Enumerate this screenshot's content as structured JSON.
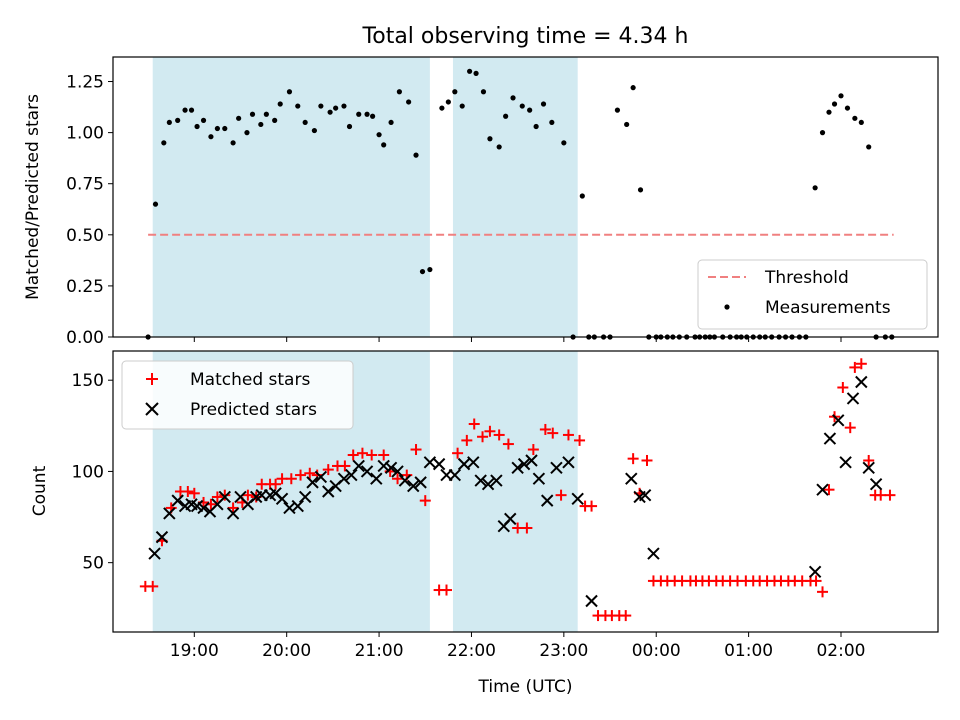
{
  "figure": {
    "title": "Total observing time = 4.34 h",
    "xlabel": "Time (UTC)",
    "x_tick_labels": [
      "19:00",
      "20:00",
      "21:00",
      "22:00",
      "23:00",
      "00:00",
      "01:00",
      "02:00"
    ],
    "x_unit": "decimal hours UTC; values above 24 are after midnight",
    "colors": {
      "shade": "#add8e6",
      "matched": "#ff0000",
      "predicted": "#000000",
      "threshold": "#f08080",
      "measurement": "#000000"
    }
  },
  "chart_data": [
    {
      "type": "scatter",
      "ylabel": "Matched/Predicted stars",
      "xlim": [
        18.12,
        27.05
      ],
      "ylim": [
        0,
        1.37
      ],
      "y_ticks": [
        0.0,
        0.25,
        0.5,
        0.75,
        1.0,
        1.25
      ],
      "y_tick_labels": [
        "0.00",
        "0.25",
        "0.50",
        "0.75",
        "1.00",
        "1.25"
      ],
      "legend_position": "lower-right",
      "shaded_spans": [
        [
          18.55,
          21.55
        ],
        [
          21.8,
          23.15
        ]
      ],
      "series": [
        {
          "name": "Threshold",
          "kind": "dashed-line",
          "x": [
            18.5,
            26.57
          ],
          "y": [
            0.5,
            0.5
          ]
        },
        {
          "name": "Measurements",
          "kind": "dot",
          "x": [
            18.5,
            18.58,
            18.67,
            18.73,
            18.82,
            18.9,
            18.97,
            19.03,
            19.1,
            19.18,
            19.25,
            19.33,
            19.42,
            19.48,
            19.57,
            19.63,
            19.72,
            19.78,
            19.87,
            19.93,
            20.03,
            20.12,
            20.2,
            20.3,
            20.37,
            20.47,
            20.53,
            20.62,
            20.68,
            20.78,
            20.87,
            20.93,
            21.0,
            21.05,
            21.13,
            21.22,
            21.32,
            21.4,
            21.47,
            21.55,
            21.68,
            21.75,
            21.82,
            21.9,
            21.98,
            22.05,
            22.13,
            22.2,
            22.3,
            22.37,
            22.45,
            22.55,
            22.63,
            22.7,
            22.78,
            22.87,
            23.0,
            23.1,
            23.2,
            23.27,
            23.33,
            23.43,
            23.5,
            23.58,
            23.68,
            23.75,
            23.83,
            23.92,
            24.0,
            24.05,
            24.12,
            24.18,
            24.25,
            24.33,
            24.42,
            24.47,
            24.53,
            24.58,
            24.63,
            24.72,
            24.8,
            24.87,
            24.92,
            24.98,
            25.05,
            25.12,
            25.18,
            25.25,
            25.33,
            25.4,
            25.47,
            25.55,
            25.62,
            25.72,
            25.8,
            25.87,
            25.93,
            26.0,
            26.07,
            26.15,
            26.22,
            26.3,
            26.38,
            26.48,
            26.55
          ],
          "y": [
            0.0,
            0.65,
            0.95,
            1.05,
            1.06,
            1.11,
            1.11,
            1.03,
            1.06,
            0.98,
            1.02,
            1.02,
            0.95,
            1.07,
            1.0,
            1.09,
            1.04,
            1.09,
            1.06,
            1.14,
            1.2,
            1.13,
            1.05,
            1.01,
            1.13,
            1.1,
            1.12,
            1.13,
            1.03,
            1.09,
            1.09,
            1.08,
            0.99,
            0.94,
            1.05,
            1.2,
            1.15,
            0.89,
            0.32,
            0.33,
            1.12,
            1.15,
            1.2,
            1.13,
            1.3,
            1.29,
            1.2,
            0.97,
            0.93,
            1.08,
            1.17,
            1.13,
            1.11,
            1.03,
            1.14,
            1.05,
            0.95,
            0.0,
            0.69,
            0.0,
            0.0,
            0.0,
            0.0,
            1.11,
            1.04,
            1.22,
            0.72,
            0.0,
            0.0,
            0.0,
            0.0,
            0.0,
            0.0,
            0.0,
            0.0,
            0.0,
            0.0,
            0.0,
            0.0,
            0.0,
            0.0,
            0.0,
            0.0,
            0.0,
            0.0,
            0.0,
            0.0,
            0.0,
            0.0,
            0.0,
            0.0,
            0.0,
            0.0,
            0.73,
            1.0,
            1.1,
            1.14,
            1.18,
            1.12,
            1.07,
            1.05,
            0.93,
            0.0,
            0.0,
            0.0
          ]
        }
      ]
    },
    {
      "type": "scatter",
      "ylabel": "Count",
      "xlim": [
        18.12,
        27.05
      ],
      "ylim": [
        12,
        166
      ],
      "y_ticks": [
        50,
        100,
        150
      ],
      "y_tick_labels": [
        "50",
        "100",
        "150"
      ],
      "legend_position": "upper-left",
      "shaded_spans": [
        [
          18.55,
          21.55
        ],
        [
          21.8,
          23.15
        ]
      ],
      "series": [
        {
          "name": "Matched stars",
          "kind": "plus",
          "x": [
            18.47,
            18.55,
            18.65,
            18.75,
            18.85,
            18.93,
            19.0,
            19.1,
            19.18,
            19.25,
            19.33,
            19.42,
            19.52,
            19.58,
            19.67,
            19.73,
            19.82,
            19.88,
            19.95,
            20.05,
            20.15,
            20.25,
            20.33,
            20.45,
            20.55,
            20.63,
            20.72,
            20.82,
            20.92,
            21.05,
            21.12,
            21.2,
            21.3,
            21.4,
            21.5,
            21.65,
            21.73,
            21.85,
            21.95,
            22.03,
            22.12,
            22.2,
            22.3,
            22.4,
            22.5,
            22.6,
            22.67,
            22.8,
            22.88,
            22.97,
            23.05,
            23.17,
            23.23,
            23.3,
            23.37,
            23.45,
            23.52,
            23.6,
            23.67,
            23.75,
            23.82,
            23.9,
            23.97,
            24.05,
            24.12,
            24.2,
            24.28,
            24.37,
            24.43,
            24.5,
            24.57,
            24.65,
            24.72,
            24.8,
            24.88,
            24.97,
            25.05,
            25.12,
            25.2,
            25.28,
            25.35,
            25.43,
            25.5,
            25.58,
            25.67,
            25.73,
            25.8,
            25.87,
            25.93,
            26.02,
            26.1,
            26.15,
            26.22,
            26.3,
            26.37,
            26.43,
            26.53
          ],
          "y": [
            37,
            37,
            62,
            80,
            89,
            89,
            88,
            83,
            82,
            86,
            87,
            80,
            83,
            87,
            86,
            93,
            93,
            93,
            96,
            96,
            98,
            99,
            98,
            101,
            103,
            103,
            109,
            110,
            109,
            109,
            100,
            96,
            98,
            112,
            84,
            35,
            35,
            110,
            117,
            126,
            119,
            122,
            120,
            115,
            69,
            69,
            112,
            123,
            121,
            87,
            120,
            117,
            81,
            81,
            21,
            21,
            21,
            21,
            21,
            107,
            88,
            106,
            40,
            40,
            40,
            40,
            40,
            40,
            40,
            40,
            40,
            40,
            40,
            40,
            40,
            40,
            40,
            40,
            40,
            40,
            40,
            40,
            40,
            40,
            40,
            40,
            34,
            90,
            130,
            146,
            124,
            157,
            159,
            106,
            87,
            87,
            87
          ]
        },
        {
          "name": "Predicted stars",
          "kind": "cross",
          "x": [
            18.57,
            18.65,
            18.73,
            18.82,
            18.9,
            18.97,
            19.03,
            19.1,
            19.17,
            19.25,
            19.33,
            19.42,
            19.5,
            19.58,
            19.67,
            19.73,
            19.82,
            19.88,
            19.95,
            20.03,
            20.12,
            20.2,
            20.28,
            20.37,
            20.45,
            20.53,
            20.62,
            20.7,
            20.78,
            20.87,
            20.97,
            21.05,
            21.13,
            21.2,
            21.28,
            21.37,
            21.45,
            21.55,
            21.65,
            21.73,
            21.82,
            21.92,
            22.02,
            22.1,
            22.18,
            22.27,
            22.35,
            22.42,
            22.5,
            22.57,
            22.65,
            22.73,
            22.82,
            22.92,
            23.05,
            23.15,
            23.3,
            23.73,
            23.82,
            23.88,
            23.97,
            25.72,
            25.8,
            25.88,
            25.97,
            26.05,
            26.13,
            26.22,
            26.3,
            26.38
          ],
          "y": [
            55,
            64,
            77,
            84,
            81,
            82,
            81,
            80,
            78,
            82,
            86,
            77,
            86,
            82,
            86,
            87,
            87,
            88,
            85,
            80,
            81,
            86,
            94,
            97,
            89,
            92,
            96,
            98,
            103,
            100,
            96,
            103,
            102,
            100,
            95,
            92,
            94,
            105,
            104,
            98,
            98,
            104,
            105,
            95,
            93,
            95,
            70,
            74,
            102,
            104,
            106,
            96,
            84,
            102,
            105,
            85,
            29,
            96,
            86,
            87,
            55,
            45,
            90,
            118,
            128,
            105,
            140,
            149,
            102,
            93
          ]
        }
      ]
    }
  ]
}
